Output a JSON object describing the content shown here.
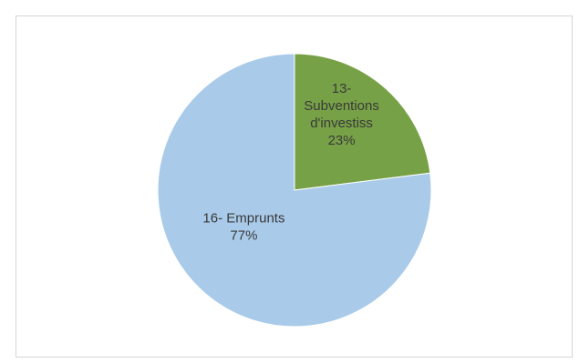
{
  "chart_data": {
    "type": "pie",
    "slices": [
      {
        "label_lines": [
          "13-",
          "Subventions",
          "d'investiss"
        ],
        "percent_label": "23%",
        "value": 23,
        "color": "#77a146"
      },
      {
        "label_lines": [
          "16- Emprunts"
        ],
        "percent_label": "77%",
        "value": 77,
        "color": "#a9cbe9"
      }
    ],
    "start_angle_deg": 0,
    "direction": "clockwise",
    "legend": "none"
  }
}
